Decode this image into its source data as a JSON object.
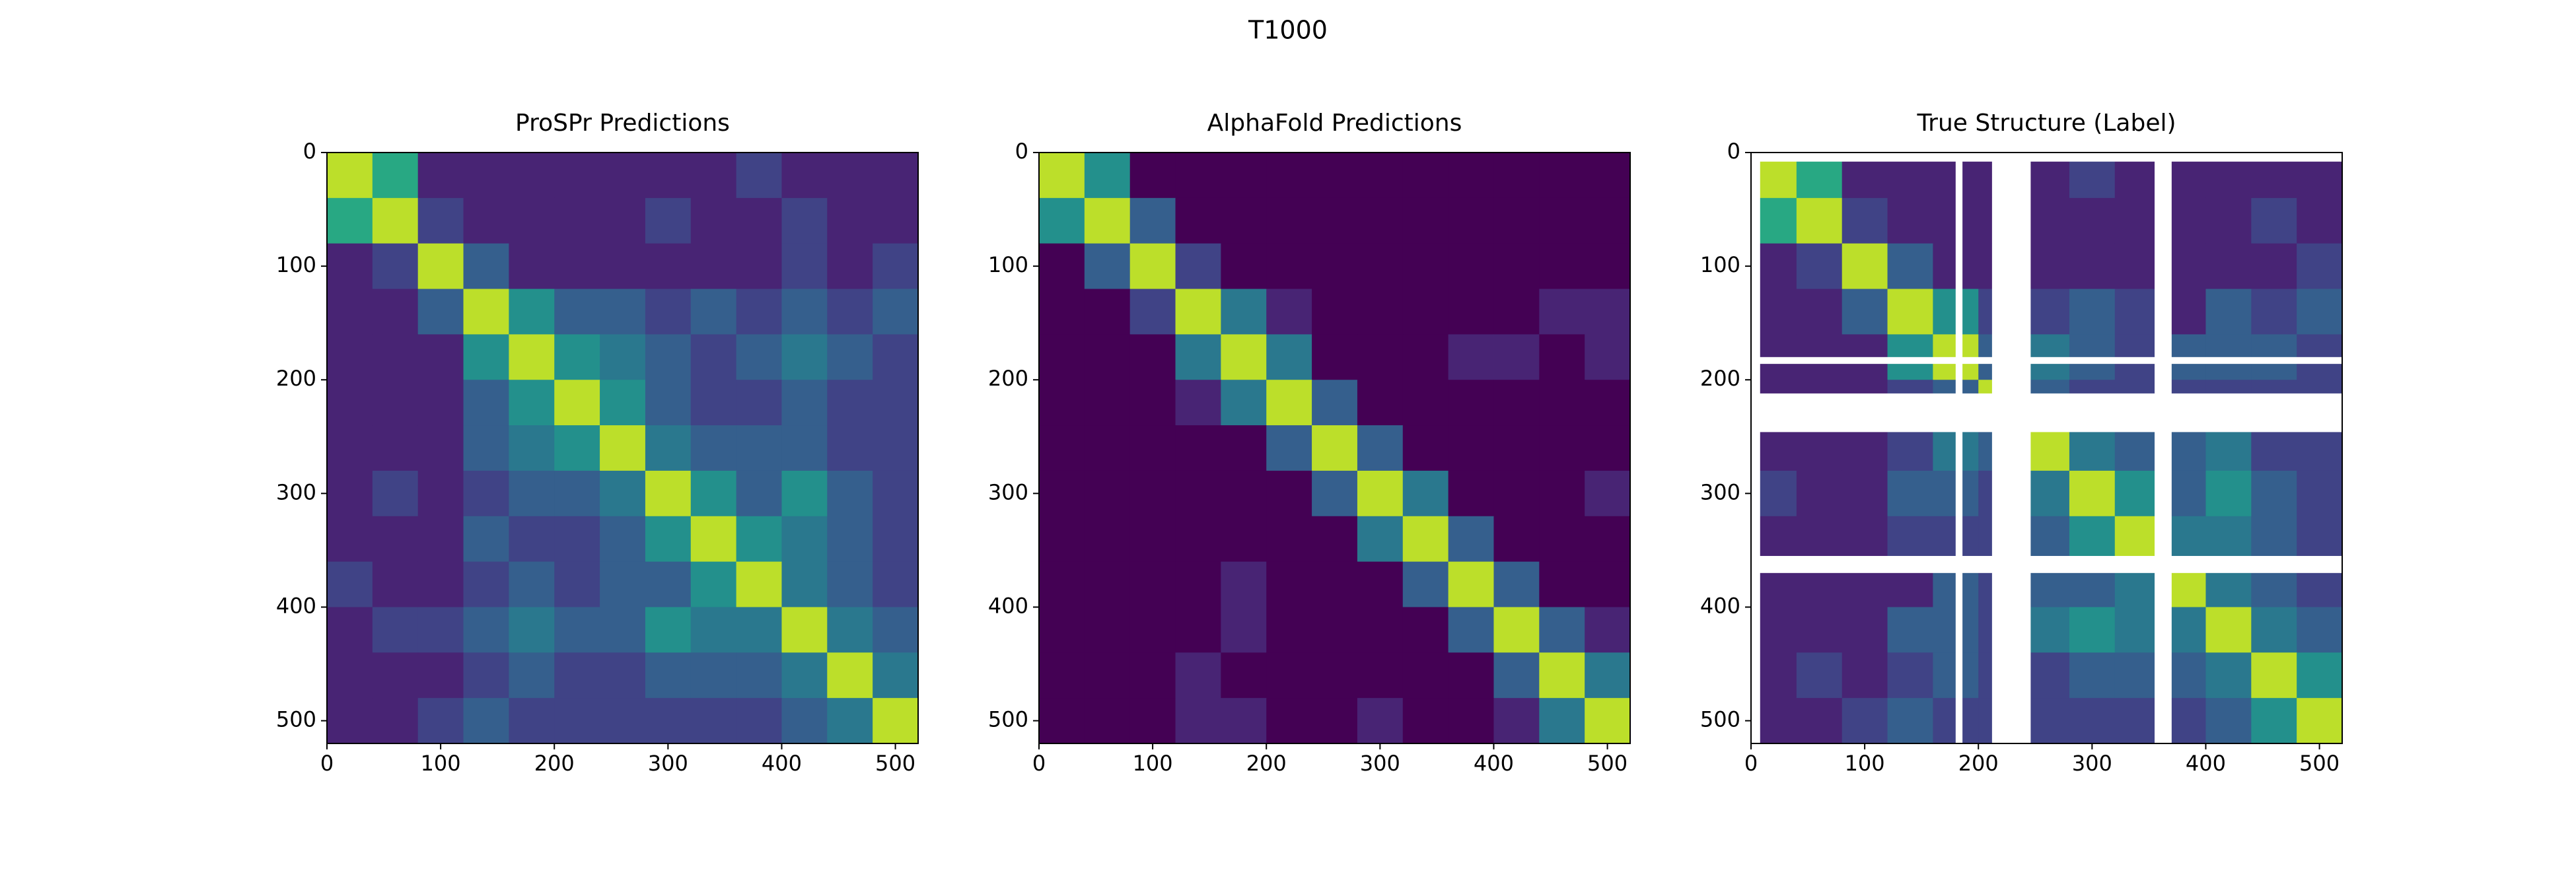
{
  "title": "T1000",
  "chart_data": [
    {
      "type": "heatmap",
      "title": "ProSPr Predictions",
      "colormap": "viridis",
      "zlim": [
        0,
        1
      ],
      "xlim": [
        0,
        520
      ],
      "ylim": [
        520,
        0
      ],
      "xticks": [
        0,
        100,
        200,
        300,
        400,
        500
      ],
      "yticks": [
        0,
        100,
        200,
        300,
        400,
        500
      ],
      "bins": [
        0,
        40,
        80,
        120,
        160,
        200,
        240,
        280,
        320,
        360,
        400,
        440,
        480,
        520
      ],
      "values": [
        [
          0.9,
          0.6,
          0.1,
          0.1,
          0.1,
          0.1,
          0.1,
          0.1,
          0.1,
          0.2,
          0.1,
          0.1,
          0.1
        ],
        [
          0.6,
          0.9,
          0.2,
          0.1,
          0.1,
          0.1,
          0.1,
          0.2,
          0.1,
          0.1,
          0.2,
          0.1,
          0.1
        ],
        [
          0.1,
          0.2,
          0.9,
          0.3,
          0.1,
          0.1,
          0.1,
          0.1,
          0.1,
          0.1,
          0.2,
          0.1,
          0.2
        ],
        [
          0.1,
          0.1,
          0.3,
          0.9,
          0.5,
          0.3,
          0.3,
          0.2,
          0.3,
          0.2,
          0.3,
          0.2,
          0.3
        ],
        [
          0.1,
          0.1,
          0.1,
          0.5,
          0.9,
          0.5,
          0.4,
          0.3,
          0.2,
          0.3,
          0.4,
          0.3,
          0.2
        ],
        [
          0.1,
          0.1,
          0.1,
          0.3,
          0.5,
          0.9,
          0.5,
          0.3,
          0.2,
          0.2,
          0.3,
          0.2,
          0.2
        ],
        [
          0.1,
          0.1,
          0.1,
          0.3,
          0.4,
          0.5,
          0.9,
          0.4,
          0.3,
          0.3,
          0.3,
          0.2,
          0.2
        ],
        [
          0.1,
          0.2,
          0.1,
          0.2,
          0.3,
          0.3,
          0.4,
          0.9,
          0.5,
          0.3,
          0.5,
          0.3,
          0.2
        ],
        [
          0.1,
          0.1,
          0.1,
          0.3,
          0.2,
          0.2,
          0.3,
          0.5,
          0.9,
          0.5,
          0.4,
          0.3,
          0.2
        ],
        [
          0.2,
          0.1,
          0.1,
          0.2,
          0.3,
          0.2,
          0.3,
          0.3,
          0.5,
          0.9,
          0.4,
          0.3,
          0.2
        ],
        [
          0.1,
          0.2,
          0.2,
          0.3,
          0.4,
          0.3,
          0.3,
          0.5,
          0.4,
          0.4,
          0.9,
          0.4,
          0.3
        ],
        [
          0.1,
          0.1,
          0.1,
          0.2,
          0.3,
          0.2,
          0.2,
          0.3,
          0.3,
          0.3,
          0.4,
          0.9,
          0.4
        ],
        [
          0.1,
          0.1,
          0.2,
          0.3,
          0.2,
          0.2,
          0.2,
          0.2,
          0.2,
          0.2,
          0.3,
          0.4,
          0.9
        ]
      ]
    },
    {
      "type": "heatmap",
      "title": "AlphaFold Predictions",
      "colormap": "viridis",
      "zlim": [
        0,
        1
      ],
      "xlim": [
        0,
        520
      ],
      "ylim": [
        520,
        0
      ],
      "xticks": [
        0,
        100,
        200,
        300,
        400,
        500
      ],
      "yticks": [
        0,
        100,
        200,
        300,
        400,
        500
      ],
      "bins": [
        0,
        40,
        80,
        120,
        160,
        200,
        240,
        280,
        320,
        360,
        400,
        440,
        480,
        520
      ],
      "values": [
        [
          0.9,
          0.5,
          0,
          0,
          0,
          0,
          0,
          0,
          0,
          0,
          0,
          0,
          0
        ],
        [
          0.5,
          0.9,
          0.3,
          0,
          0,
          0,
          0,
          0,
          0,
          0,
          0,
          0,
          0
        ],
        [
          0,
          0.3,
          0.9,
          0.2,
          0,
          0,
          0,
          0,
          0,
          0,
          0,
          0,
          0
        ],
        [
          0,
          0,
          0.2,
          0.9,
          0.4,
          0.1,
          0,
          0,
          0,
          0,
          0,
          0.1,
          0.1
        ],
        [
          0,
          0,
          0,
          0.4,
          0.9,
          0.4,
          0,
          0,
          0,
          0.1,
          0.1,
          0,
          0.1
        ],
        [
          0,
          0,
          0,
          0.1,
          0.4,
          0.9,
          0.3,
          0,
          0,
          0,
          0,
          0,
          0
        ],
        [
          0,
          0,
          0,
          0,
          0,
          0.3,
          0.9,
          0.3,
          0,
          0,
          0,
          0,
          0
        ],
        [
          0,
          0,
          0,
          0,
          0,
          0,
          0.3,
          0.9,
          0.4,
          0,
          0,
          0,
          0.1
        ],
        [
          0,
          0,
          0,
          0,
          0,
          0,
          0,
          0.4,
          0.9,
          0.3,
          0,
          0,
          0
        ],
        [
          0,
          0,
          0,
          0,
          0.1,
          0,
          0,
          0,
          0.3,
          0.9,
          0.3,
          0,
          0
        ],
        [
          0,
          0,
          0,
          0,
          0.1,
          0,
          0,
          0,
          0,
          0.3,
          0.9,
          0.3,
          0.1
        ],
        [
          0,
          0,
          0,
          0.1,
          0,
          0,
          0,
          0,
          0,
          0,
          0.3,
          0.9,
          0.4
        ],
        [
          0,
          0,
          0,
          0.1,
          0.1,
          0,
          0,
          0.1,
          0,
          0,
          0.1,
          0.4,
          0.9
        ]
      ]
    },
    {
      "type": "heatmap",
      "title": "True Structure (Label)",
      "colormap": "viridis",
      "zlim": [
        0,
        1
      ],
      "xlim": [
        0,
        520
      ],
      "ylim": [
        520,
        0
      ],
      "xticks": [
        0,
        100,
        200,
        300,
        400,
        500
      ],
      "yticks": [
        0,
        100,
        200,
        300,
        400,
        500
      ],
      "bins": [
        0,
        40,
        80,
        120,
        160,
        200,
        240,
        280,
        320,
        360,
        400,
        440,
        480,
        520
      ],
      "masked_ranges": [
        [
          0,
          8
        ],
        [
          180,
          186
        ],
        [
          212,
          246
        ],
        [
          355,
          370
        ]
      ],
      "values": [
        [
          0.9,
          0.6,
          0.1,
          0.1,
          0.1,
          0.1,
          0.1,
          0.2,
          0.1,
          0.1,
          0.1,
          0.1,
          0.1
        ],
        [
          0.6,
          0.9,
          0.2,
          0.1,
          0.1,
          0.1,
          0.1,
          0.1,
          0.1,
          0.1,
          0.1,
          0.2,
          0.1
        ],
        [
          0.1,
          0.2,
          0.9,
          0.3,
          0.1,
          0.1,
          0.1,
          0.1,
          0.1,
          0.1,
          0.1,
          0.1,
          0.2
        ],
        [
          0.1,
          0.1,
          0.3,
          0.9,
          0.5,
          0.2,
          0.2,
          0.3,
          0.2,
          0.1,
          0.3,
          0.2,
          0.3
        ],
        [
          0.1,
          0.1,
          0.1,
          0.5,
          0.9,
          0.3,
          0.4,
          0.3,
          0.2,
          0.3,
          0.3,
          0.3,
          0.2
        ],
        [
          0.1,
          0.1,
          0.1,
          0.2,
          0.3,
          0.9,
          0.3,
          0.2,
          0.2,
          0.2,
          0.2,
          0.2,
          0.2
        ],
        [
          0.1,
          0.1,
          0.1,
          0.2,
          0.4,
          0.3,
          0.9,
          0.4,
          0.3,
          0.3,
          0.4,
          0.2,
          0.2
        ],
        [
          0.2,
          0.1,
          0.1,
          0.3,
          0.3,
          0.2,
          0.4,
          0.9,
          0.5,
          0.3,
          0.5,
          0.3,
          0.2
        ],
        [
          0.1,
          0.1,
          0.1,
          0.2,
          0.2,
          0.2,
          0.3,
          0.5,
          0.9,
          0.4,
          0.4,
          0.3,
          0.2
        ],
        [
          0.1,
          0.1,
          0.1,
          0.1,
          0.3,
          0.2,
          0.3,
          0.3,
          0.4,
          0.9,
          0.4,
          0.3,
          0.2
        ],
        [
          0.1,
          0.1,
          0.1,
          0.3,
          0.3,
          0.2,
          0.4,
          0.5,
          0.4,
          0.4,
          0.9,
          0.4,
          0.3
        ],
        [
          0.1,
          0.2,
          0.1,
          0.2,
          0.3,
          0.2,
          0.2,
          0.3,
          0.3,
          0.3,
          0.4,
          0.9,
          0.5
        ],
        [
          0.1,
          0.1,
          0.2,
          0.3,
          0.2,
          0.2,
          0.2,
          0.2,
          0.2,
          0.2,
          0.3,
          0.5,
          0.9
        ]
      ]
    }
  ]
}
